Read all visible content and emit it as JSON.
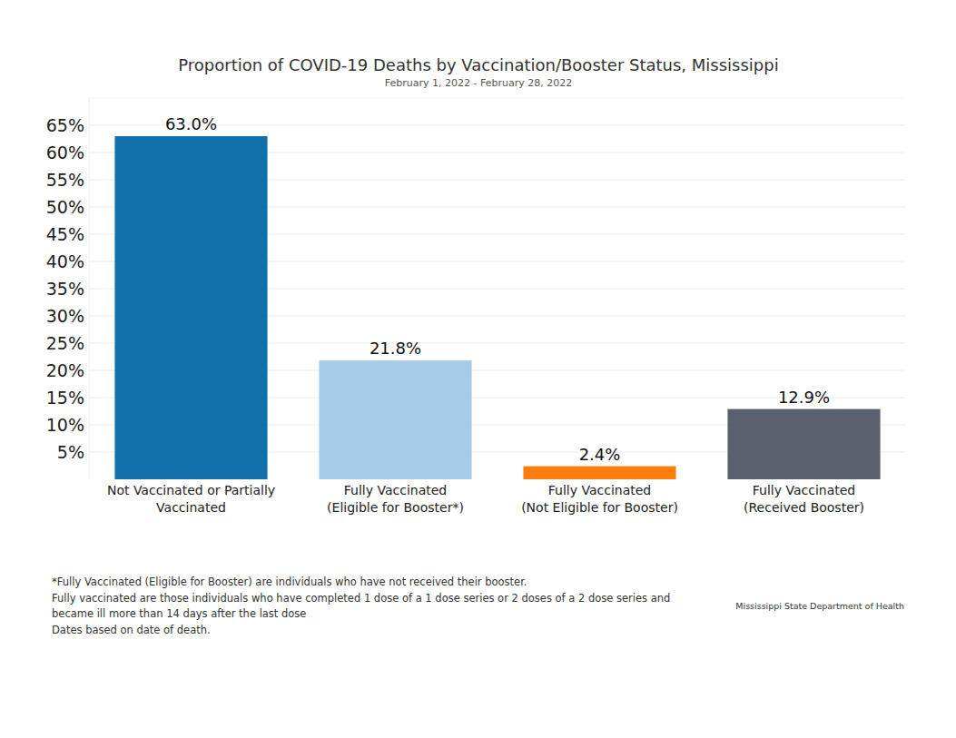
{
  "chart_data": {
    "type": "bar",
    "title": "Proportion of COVID-19 Deaths by Vaccination/Booster Status, Mississippi",
    "subtitle": "February 1, 2022 - February 28, 2022",
    "categories": [
      "Not Vaccinated or Partially\nVaccinated",
      "Fully Vaccinated\n(Eligible for Booster*)",
      "Fully Vaccinated\n(Not Eligible for Booster)",
      "Fully Vaccinated\n(Received Booster)"
    ],
    "values": [
      63.0,
      21.8,
      2.4,
      12.9
    ],
    "value_labels": [
      "63.0%",
      "21.8%",
      "2.4%",
      "12.9%"
    ],
    "colors": [
      "#1170aa",
      "#a6cbe8",
      "#fc7d0b",
      "#57606c"
    ],
    "ylim": [
      0,
      70
    ],
    "yticks": [
      {
        "value": 5,
        "label": "5%"
      },
      {
        "value": 10,
        "label": "10%"
      },
      {
        "value": 15,
        "label": "15%"
      },
      {
        "value": 20,
        "label": "20%"
      },
      {
        "value": 25,
        "label": "25%"
      },
      {
        "value": 30,
        "label": "30%"
      },
      {
        "value": 35,
        "label": "35%"
      },
      {
        "value": 40,
        "label": "40%"
      },
      {
        "value": 45,
        "label": "45%"
      },
      {
        "value": 50,
        "label": "50%"
      },
      {
        "value": 55,
        "label": "55%"
      },
      {
        "value": 60,
        "label": "60%"
      },
      {
        "value": 65,
        "label": "65%"
      }
    ],
    "grid": true,
    "data_labels": true,
    "notes": [
      "*Fully Vaccinated (Eligible for Booster) are individuals who have not received their booster.",
      "Fully vaccinated are those individuals who have completed 1 dose of a 1 dose series or 2 doses of a 2 dose series and\nbecame ill more than 14 days after the last dose",
      "Dates based on date of death."
    ],
    "source": "Mississippi State Department of Health"
  }
}
